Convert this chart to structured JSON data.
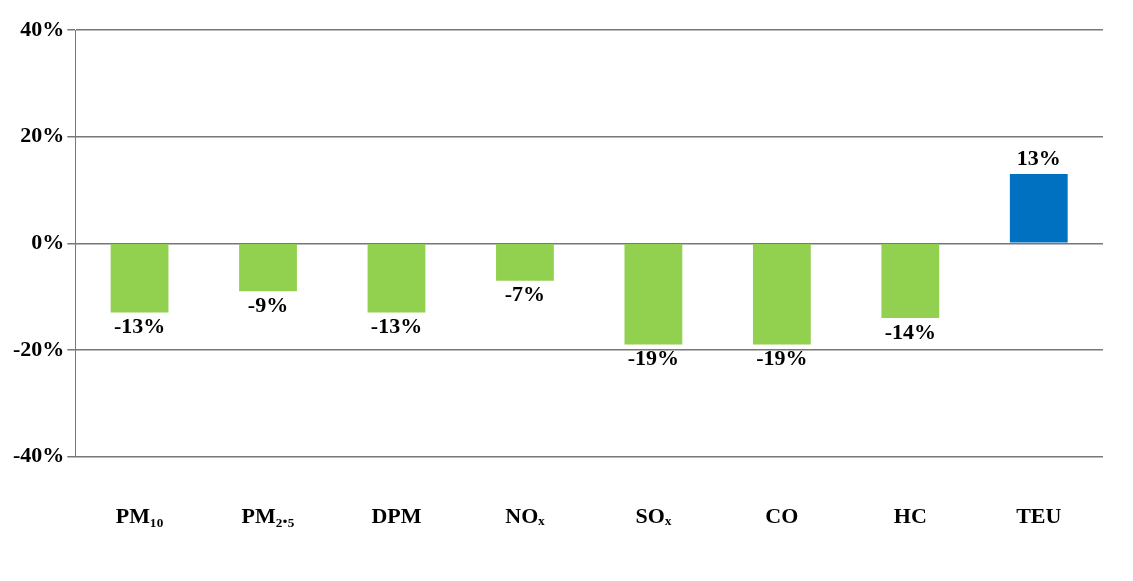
{
  "chart_data": {
    "type": "bar",
    "categories": [
      "PM₁₀",
      "PM₂.₅",
      "DPM",
      "NOₓ",
      "SOₓ",
      "CO",
      "HC",
      "TEU"
    ],
    "values": [
      -13,
      -9,
      -13,
      -7,
      -19,
      -19,
      -14,
      13
    ],
    "colors": [
      "#92d050",
      "#92d050",
      "#92d050",
      "#92d050",
      "#92d050",
      "#92d050",
      "#92d050",
      "#0070c0"
    ],
    "value_labels": [
      "-13%",
      "-9%",
      "-13%",
      "-7%",
      "-19%",
      "-19%",
      "-14%",
      "13%"
    ],
    "ylim": [
      -40,
      40
    ],
    "yticks": [
      {
        "value": -40,
        "label": "-40%"
      },
      {
        "value": -20,
        "label": "-20%"
      },
      {
        "value": 0,
        "label": "0%"
      },
      {
        "value": 20,
        "label": "20%"
      },
      {
        "value": 40,
        "label": "40%"
      }
    ],
    "grid": "y",
    "legend": false
  }
}
